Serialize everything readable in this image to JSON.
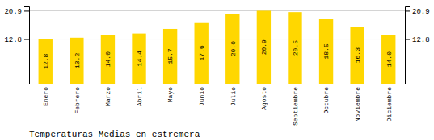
{
  "chart_data": {
    "type": "bar",
    "title": "Temperaturas Medias en estremera",
    "categories": [
      "Enero",
      "Febrero",
      "Marzo",
      "Abril",
      "Mayo",
      "Junio",
      "Julio",
      "Agosto",
      "Septiembre",
      "Octubre",
      "Noviembre",
      "Diciembre"
    ],
    "values": [
      12.8,
      13.2,
      14.0,
      14.4,
      15.7,
      17.6,
      20.0,
      20.9,
      20.5,
      18.5,
      16.3,
      14.0
    ],
    "value_labels": [
      "12.8",
      "13.2",
      "14.0",
      "14.4",
      "15.7",
      "17.6",
      "20.0",
      "20.9",
      "20.5",
      "18.5",
      "16.3",
      "14.0"
    ],
    "data_labels": true,
    "color": "#FFD700",
    "ylim": [
      0,
      22.154
    ],
    "yticks": [
      12.8,
      20.9
    ],
    "y2lim": [
      0,
      22.154
    ],
    "y2ticks": [
      12.8,
      20.9
    ],
    "grid": true
  }
}
